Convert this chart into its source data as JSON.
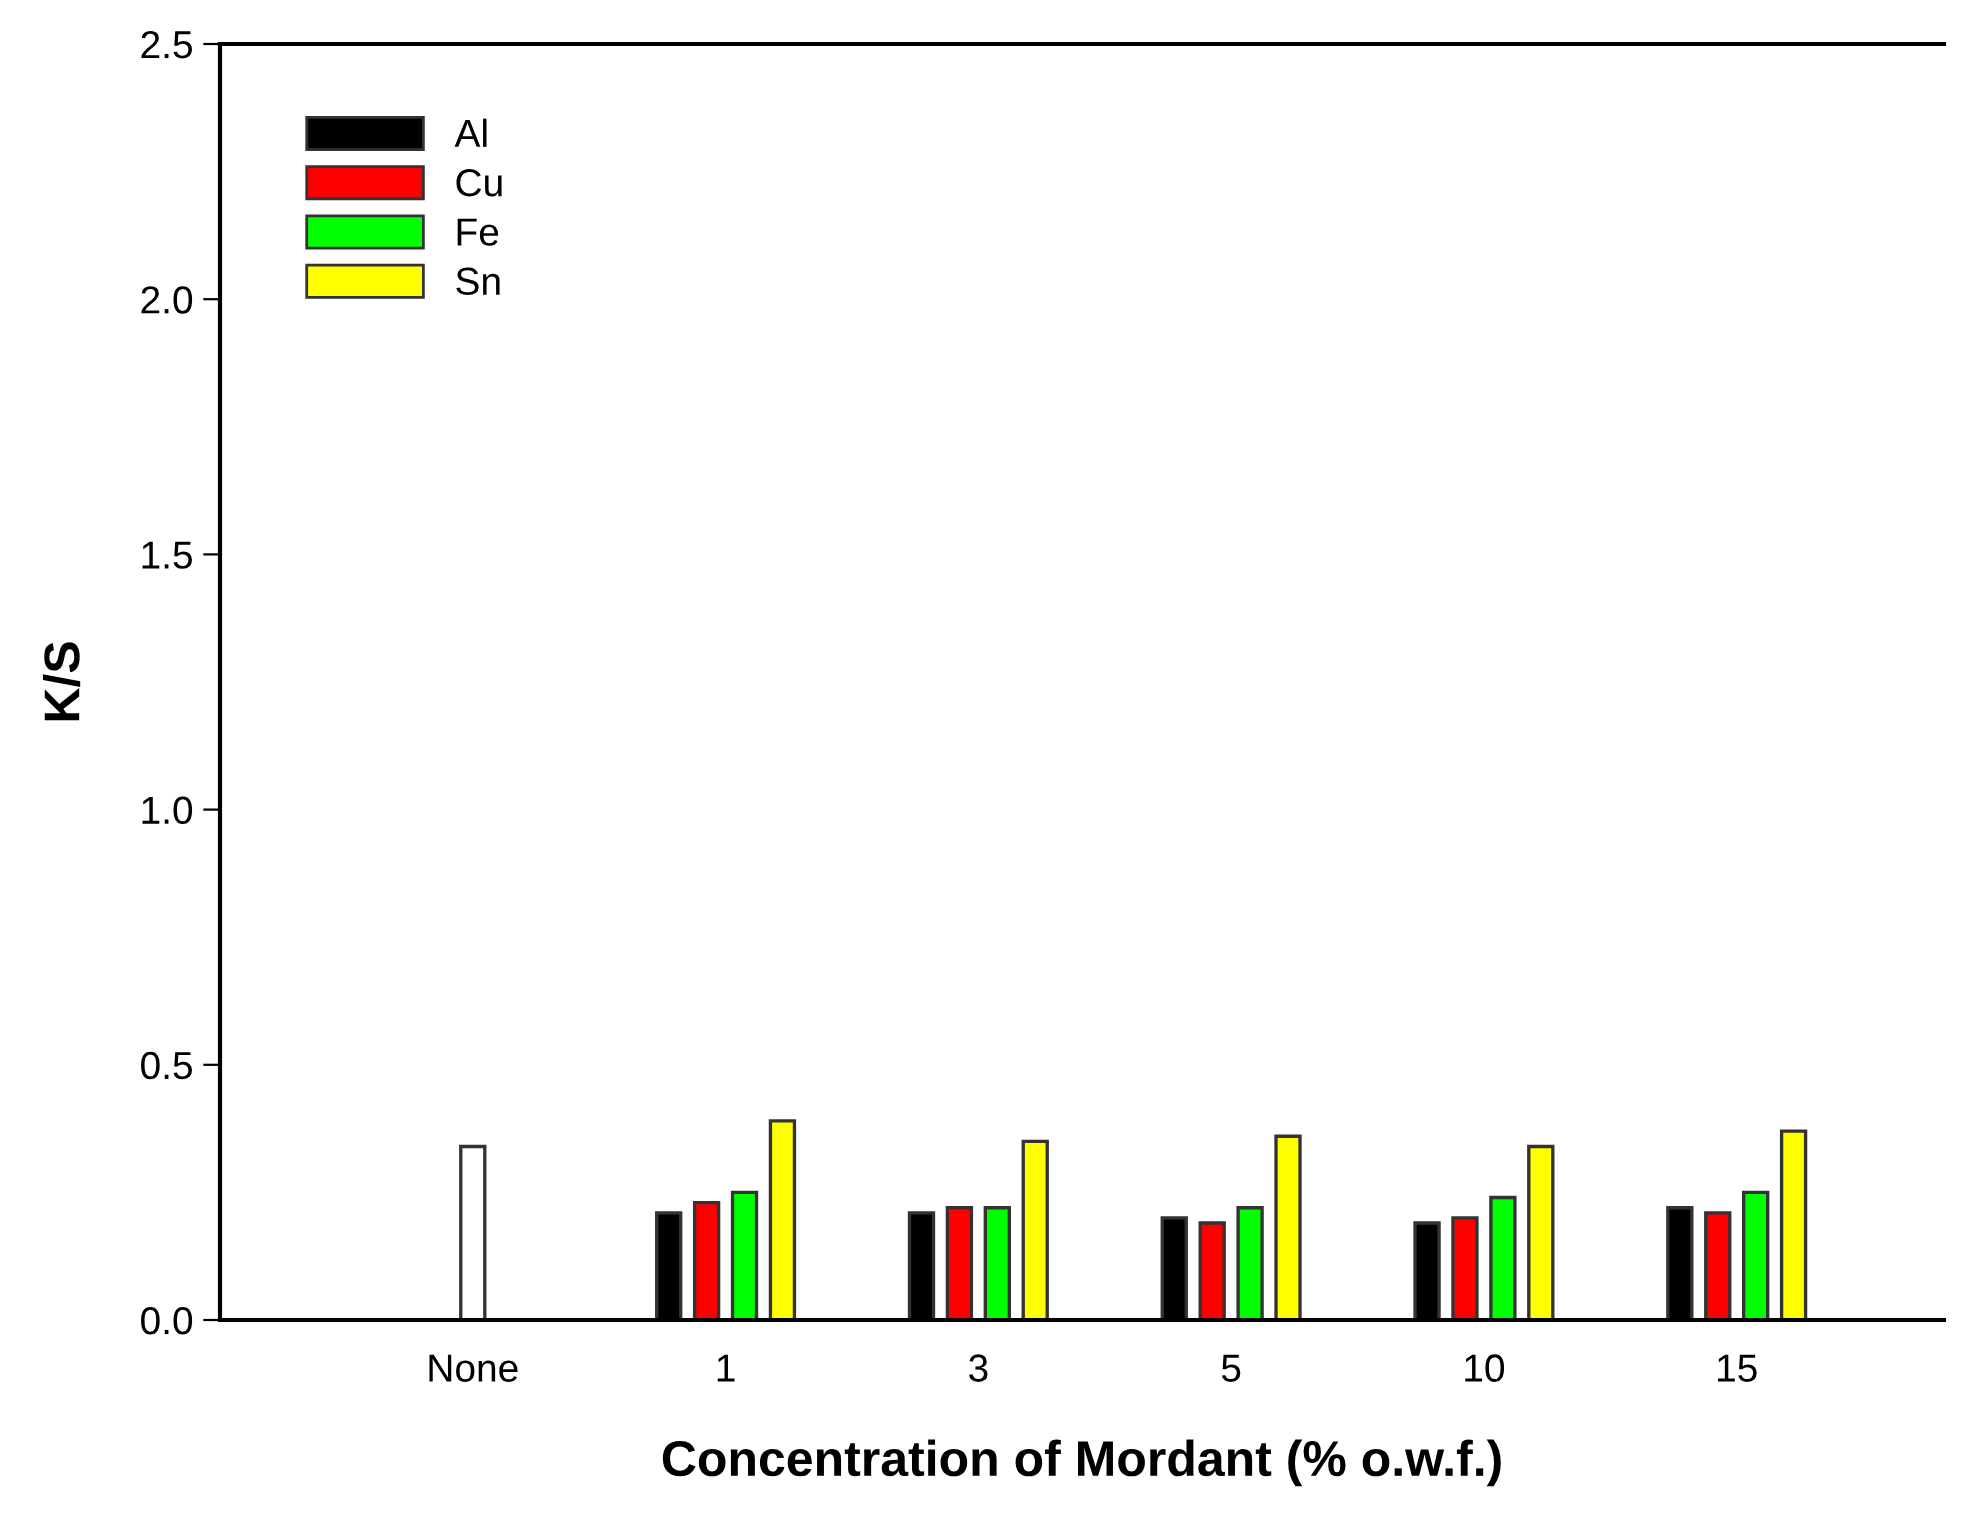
{
  "chart_data": {
    "type": "bar",
    "xlabel": "Concentration of Mordant (% o.w.f.)",
    "ylabel": "K/S",
    "categories": [
      "None",
      "1",
      "3",
      "5",
      "10",
      "15"
    ],
    "series": [
      {
        "name": "Al",
        "color": "#000000",
        "values": [
          null,
          0.21,
          0.21,
          0.2,
          0.19,
          0.22
        ]
      },
      {
        "name": "Cu",
        "color": "#ff0000",
        "values": [
          null,
          0.23,
          0.22,
          0.19,
          0.2,
          0.21
        ]
      },
      {
        "name": "Fe",
        "color": "#00ff00",
        "values": [
          null,
          0.25,
          0.22,
          0.22,
          0.24,
          0.25
        ]
      },
      {
        "name": "Sn",
        "color": "#ffff00",
        "values": [
          null,
          0.39,
          0.35,
          0.36,
          0.34,
          0.37
        ]
      },
      {
        "color": "#ffffff",
        "values": [
          0.34,
          null,
          null,
          null,
          null,
          null
        ]
      }
    ],
    "ylim": [
      0,
      2.5
    ],
    "yticks": [
      {
        "value": 0,
        "label": "0.0"
      },
      {
        "value": 0.5,
        "label": "0.5"
      },
      {
        "value": 1,
        "label": "1.0"
      },
      {
        "value": 1.5,
        "label": "1.5"
      },
      {
        "value": 2,
        "label": "2.0"
      },
      {
        "value": 2.5,
        "label": "2.5"
      }
    ],
    "legend": "top left",
    "grid": false
  }
}
